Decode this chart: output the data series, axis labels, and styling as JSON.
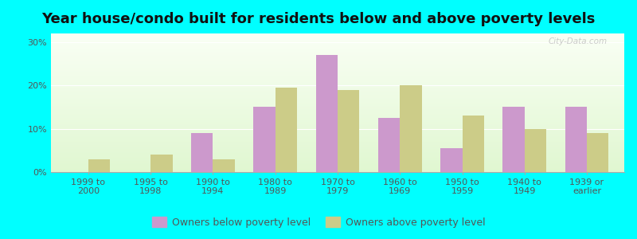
{
  "title": "Year house/condo built for residents below and above poverty levels",
  "categories": [
    "1999 to\n2000",
    "1995 to\n1998",
    "1990 to\n1994",
    "1980 to\n1989",
    "1970 to\n1979",
    "1960 to\n1969",
    "1950 to\n1959",
    "1940 to\n1949",
    "1939 or\nearlier"
  ],
  "below_poverty": [
    0,
    0,
    9,
    15,
    27,
    12.5,
    5.5,
    15,
    15
  ],
  "above_poverty": [
    3,
    4,
    3,
    19.5,
    19,
    20,
    13,
    10,
    9
  ],
  "below_color": "#cc99cc",
  "above_color": "#cccc88",
  "ylim": [
    0,
    32
  ],
  "yticks": [
    0,
    10,
    20,
    30
  ],
  "ytick_labels": [
    "0%",
    "10%",
    "20%",
    "30%"
  ],
  "outer_background": "#00ffff",
  "bar_width": 0.35,
  "legend_below": "Owners below poverty level",
  "legend_above": "Owners above poverty level",
  "title_fontsize": 13,
  "tick_fontsize": 8,
  "legend_fontsize": 9,
  "watermark": "City-Data.com"
}
